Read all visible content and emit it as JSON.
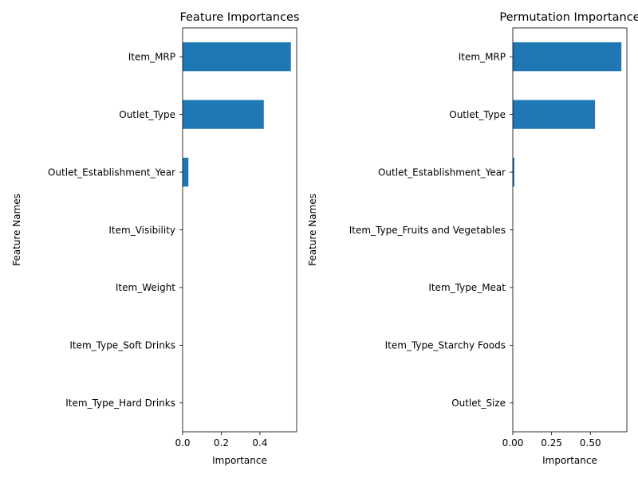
{
  "chart_data": [
    {
      "type": "bar",
      "orientation": "horizontal",
      "title": "Feature Importances",
      "xlabel": "Importance",
      "ylabel": "Feature Names",
      "categories": [
        "Item_MRP",
        "Outlet_Type",
        "Outlet_Establishment_Year",
        "Item_Visibility",
        "Item_Weight",
        "Item_Type_Soft Drinks",
        "Item_Type_Hard Drinks"
      ],
      "values": [
        0.56,
        0.42,
        0.03,
        0.0,
        0.0,
        0.0,
        0.0
      ],
      "xlim": [
        0,
        0.59
      ],
      "xticks": [
        0.0,
        0.2,
        0.4
      ],
      "xtick_labels": [
        "0.0",
        "0.2",
        "0.4"
      ],
      "bar_color": "#1f77b4",
      "grid": false
    },
    {
      "type": "bar",
      "orientation": "horizontal",
      "title": "Permutation Importance",
      "xlabel": "Importance",
      "ylabel": "Feature Names",
      "categories": [
        "Item_MRP",
        "Outlet_Type",
        "Outlet_Establishment_Year",
        "Item_Type_Fruits and Vegetables",
        "Item_Type_Meat",
        "Item_Type_Starchy Foods",
        "Outlet_Size"
      ],
      "values": [
        0.7,
        0.53,
        0.01,
        0.0,
        0.0,
        0.0,
        0.0
      ],
      "xlim": [
        0,
        0.735
      ],
      "xticks": [
        0.0,
        0.25,
        0.5
      ],
      "xtick_labels": [
        "0.00",
        "0.25",
        "0.50"
      ],
      "bar_color": "#1f77b4",
      "grid": false
    }
  ]
}
